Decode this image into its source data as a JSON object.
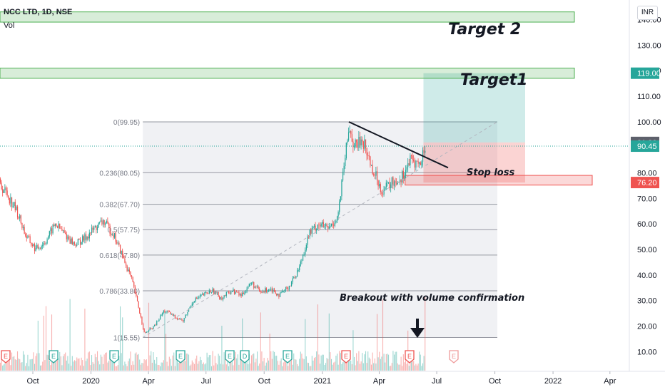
{
  "header": {
    "symbol": "NCC LTD, 1D, NSE",
    "volume_label": "Vol",
    "currency": "INR"
  },
  "chart_data": {
    "type": "candlestick",
    "ylim": [
      5,
      145
    ],
    "y_ticks": [
      "10.00",
      "20.00",
      "30.00",
      "40.00",
      "50.00",
      "60.00",
      "70.00",
      "80.00",
      "90.00",
      "100.00",
      "110.00",
      "120.00",
      "130.00",
      "140.00"
    ],
    "x_ticks": [
      "Oct",
      "2020",
      "Apr",
      "Jul",
      "Oct",
      "2021",
      "Apr",
      "Jul",
      "Oct",
      "2022",
      "Apr"
    ],
    "price_badges": [
      {
        "value": "119.00",
        "color": "#26a69a"
      },
      {
        "value": "91.90",
        "color": "#5d606b"
      },
      {
        "value": "90.45",
        "color": "#26a69a"
      },
      {
        "value": "76.20",
        "color": "#ef5350"
      }
    ],
    "fib_levels": [
      {
        "ratio": "0",
        "price": 99.95,
        "label": "0(99.95)"
      },
      {
        "ratio": "0.236",
        "price": 80.05,
        "label": "0.236(80.05)"
      },
      {
        "ratio": "0.382",
        "price": 67.7,
        "label": "0.382(67.70)"
      },
      {
        "ratio": "0.5",
        "price": 57.75,
        "label": "0.5(57.75)"
      },
      {
        "ratio": "0.618",
        "price": 47.8,
        "label": "0.618(47.80)"
      },
      {
        "ratio": "0.786",
        "price": 33.8,
        "label": "0.786(33.80)"
      },
      {
        "ratio": "1",
        "price": 15.55,
        "label": "1(15.55)"
      }
    ],
    "target_zones": [
      {
        "label": "Target 2",
        "low": 139,
        "high": 143
      },
      {
        "label": "Target1",
        "low": 117,
        "high": 121
      }
    ],
    "position": {
      "entry": 91.9,
      "target": 119.0,
      "stop": 76.2
    },
    "stop_loss_label": "Stop loss",
    "stop_zone": {
      "low": 75.2,
      "high": 79
    },
    "breakout_note": "Breakout with volume confirmation",
    "earnings_marker": "E",
    "dividend_marker": "D",
    "price_series": [
      {
        "date": "2019-08-01",
        "price": 78
      },
      {
        "date": "2019-08-20",
        "price": 72
      },
      {
        "date": "2019-09-05",
        "price": 65
      },
      {
        "date": "2019-09-20",
        "price": 55
      },
      {
        "date": "2019-10-05",
        "price": 50
      },
      {
        "date": "2019-10-20",
        "price": 53
      },
      {
        "date": "2019-11-05",
        "price": 60
      },
      {
        "date": "2019-11-20",
        "price": 56
      },
      {
        "date": "2019-12-05",
        "price": 52
      },
      {
        "date": "2019-12-20",
        "price": 54
      },
      {
        "date": "2020-01-05",
        "price": 58
      },
      {
        "date": "2020-01-20",
        "price": 61
      },
      {
        "date": "2020-02-05",
        "price": 56
      },
      {
        "date": "2020-02-20",
        "price": 47
      },
      {
        "date": "2020-03-05",
        "price": 38
      },
      {
        "date": "2020-03-15",
        "price": 28
      },
      {
        "date": "2020-03-25",
        "price": 17
      },
      {
        "date": "2020-04-10",
        "price": 20
      },
      {
        "date": "2020-04-25",
        "price": 26
      },
      {
        "date": "2020-05-10",
        "price": 24
      },
      {
        "date": "2020-05-25",
        "price": 22
      },
      {
        "date": "2020-06-10",
        "price": 30
      },
      {
        "date": "2020-06-25",
        "price": 32
      },
      {
        "date": "2020-07-10",
        "price": 34
      },
      {
        "date": "2020-07-25",
        "price": 31
      },
      {
        "date": "2020-08-10",
        "price": 34
      },
      {
        "date": "2020-08-25",
        "price": 32
      },
      {
        "date": "2020-09-10",
        "price": 37
      },
      {
        "date": "2020-09-25",
        "price": 33
      },
      {
        "date": "2020-10-10",
        "price": 35
      },
      {
        "date": "2020-10-25",
        "price": 32
      },
      {
        "date": "2020-11-10",
        "price": 36
      },
      {
        "date": "2020-11-25",
        "price": 43
      },
      {
        "date": "2020-12-10",
        "price": 56
      },
      {
        "date": "2020-12-25",
        "price": 60
      },
      {
        "date": "2021-01-10",
        "price": 58
      },
      {
        "date": "2021-01-25",
        "price": 63
      },
      {
        "date": "2021-02-05",
        "price": 85
      },
      {
        "date": "2021-02-12",
        "price": 98
      },
      {
        "date": "2021-02-20",
        "price": 90
      },
      {
        "date": "2021-03-05",
        "price": 93
      },
      {
        "date": "2021-03-20",
        "price": 82
      },
      {
        "date": "2021-04-05",
        "price": 73
      },
      {
        "date": "2021-04-20",
        "price": 76
      },
      {
        "date": "2021-05-05",
        "price": 78
      },
      {
        "date": "2021-05-20",
        "price": 85
      },
      {
        "date": "2021-06-05",
        "price": 83
      },
      {
        "date": "2021-06-12",
        "price": 91
      }
    ]
  }
}
